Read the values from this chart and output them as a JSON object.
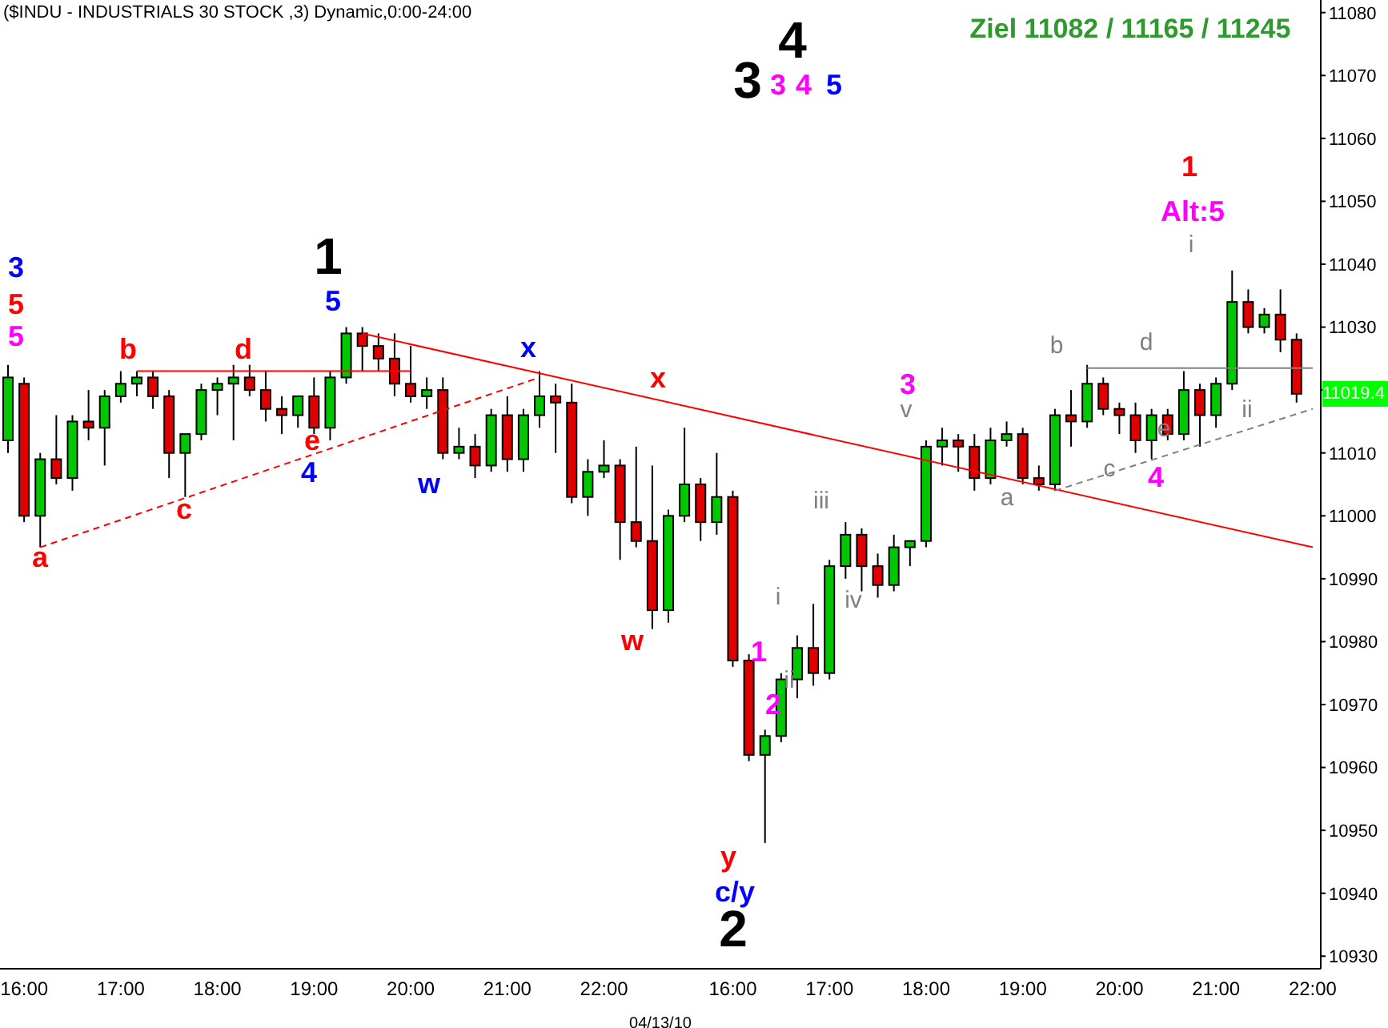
{
  "chart_data": {
    "type": "candlestick",
    "title": "($INDU - INDUSTRIALS 30 STOCK ,3) Dynamic,0:00-24:00",
    "xlabel": "04/13/10",
    "categories": [
      null,
      "16:00",
      null,
      null,
      null,
      null,
      null,
      "17:00",
      null,
      null,
      null,
      null,
      null,
      "18:00",
      null,
      null,
      null,
      null,
      null,
      "19:00",
      null,
      null,
      null,
      null,
      null,
      "20:00",
      null,
      null,
      null,
      null,
      null,
      "21:00",
      null,
      null,
      null,
      null,
      null,
      "22:00",
      null,
      null,
      null,
      null,
      null,
      null,
      null,
      "16:00",
      null,
      null,
      null,
      null,
      null,
      "17:00",
      null,
      null,
      null,
      null,
      null,
      "18:00",
      null,
      null,
      null,
      null,
      null,
      "19:00",
      null,
      null,
      null,
      null,
      null,
      "20:00",
      null,
      null,
      null,
      null,
      null,
      "21:00",
      null,
      null,
      null,
      null,
      null,
      "22:00"
    ],
    "ohlc": [
      [
        11012,
        11024,
        11010,
        11022
      ],
      [
        11021,
        11022,
        10999,
        11000
      ],
      [
        11000,
        11010,
        10995,
        11009
      ],
      [
        11009,
        11016,
        11005,
        11006
      ],
      [
        11006,
        11016,
        11004,
        11015
      ],
      [
        11015,
        11020,
        11012,
        11014
      ],
      [
        11014,
        11020,
        11008,
        11019
      ],
      [
        11019,
        11023,
        11018,
        11021
      ],
      [
        11021,
        11023,
        11019,
        11022
      ],
      [
        11022,
        11023,
        11017,
        11019
      ],
      [
        11019,
        11020,
        11006,
        11010
      ],
      [
        11010,
        11013,
        11003,
        11013
      ],
      [
        11013,
        11021,
        11012,
        11020
      ],
      [
        11020,
        11022,
        11016,
        11021
      ],
      [
        11021,
        11024,
        11012,
        11022
      ],
      [
        11022,
        11024,
        11019,
        11020
      ],
      [
        11020,
        11023,
        11015,
        11017
      ],
      [
        11017,
        11019,
        11013,
        11016
      ],
      [
        11016,
        11019,
        11014,
        11019
      ],
      [
        11019,
        11022,
        11013,
        11014
      ],
      [
        11014,
        11023,
        11012,
        11022
      ],
      [
        11022,
        11030,
        11021,
        11029
      ],
      [
        11029,
        11030,
        11023,
        11027
      ],
      [
        11027,
        11029,
        11023,
        11025
      ],
      [
        11025,
        11029,
        11019,
        11021
      ],
      [
        11021,
        11027,
        11018,
        11019
      ],
      [
        11019,
        11022,
        11017,
        11020
      ],
      [
        11020,
        11022,
        11009,
        11010
      ],
      [
        11010,
        11014,
        11009,
        11011
      ],
      [
        11011,
        11013,
        11006,
        11008
      ],
      [
        11008,
        11017,
        11007,
        11016
      ],
      [
        11016,
        11019,
        11007,
        11009
      ],
      [
        11009,
        11017,
        11007,
        11016
      ],
      [
        11016,
        11023,
        11014,
        11019
      ],
      [
        11019,
        11021,
        11010,
        11018
      ],
      [
        11018,
        11021,
        11002,
        11003
      ],
      [
        11003,
        11009,
        11000,
        11007
      ],
      [
        11007,
        11012,
        11006,
        11008
      ],
      [
        11008,
        11009,
        10993,
        10999
      ],
      [
        10999,
        11011,
        10995,
        10996
      ],
      [
        10996,
        11008,
        10982,
        10985
      ],
      [
        10985,
        11001,
        10983,
        11000
      ],
      [
        11000,
        11014,
        10999,
        11005
      ],
      [
        11005,
        11006,
        10996,
        10999
      ],
      [
        10999,
        11010,
        10997,
        11003
      ],
      [
        11003,
        11004,
        10976,
        10977
      ],
      [
        10977,
        10978,
        10961,
        10962
      ],
      [
        10962,
        10966,
        10948,
        10965
      ],
      [
        10965,
        10975,
        10964,
        10974
      ],
      [
        10974,
        10981,
        10971,
        10979
      ],
      [
        10979,
        10986,
        10973,
        10975
      ],
      [
        10975,
        10993,
        10974,
        10992
      ],
      [
        10992,
        10999,
        10990,
        10997
      ],
      [
        10997,
        10998,
        10988,
        10992
      ],
      [
        10992,
        10994,
        10987,
        10989
      ],
      [
        10989,
        10997,
        10988,
        10995
      ],
      [
        10995,
        10996,
        10992,
        10996
      ],
      [
        10996,
        11012,
        10995,
        11011
      ],
      [
        11011,
        11014,
        11008,
        11012
      ],
      [
        11012,
        11013,
        11007,
        11011
      ],
      [
        11011,
        11013,
        11004,
        11006
      ],
      [
        11006,
        11014,
        11005,
        11012
      ],
      [
        11012,
        11015,
        11011,
        11013
      ],
      [
        11013,
        11014,
        11005,
        11006
      ],
      [
        11006,
        11008,
        11004,
        11005
      ],
      [
        11005,
        11017,
        11004,
        11016
      ],
      [
        11016,
        11020,
        11011,
        11015
      ],
      [
        11015,
        11024,
        11014,
        11021
      ],
      [
        11021,
        11022,
        11016,
        11017
      ],
      [
        11017,
        11018,
        11013,
        11016
      ],
      [
        11016,
        11018,
        11010,
        11012
      ],
      [
        11012,
        11017,
        11009,
        11016
      ],
      [
        11016,
        11017,
        11012,
        11013
      ],
      [
        11013,
        11023,
        11012,
        11020
      ],
      [
        11020,
        11021,
        11011,
        11016
      ],
      [
        11016,
        11022,
        11014,
        11021
      ],
      [
        11021,
        11039,
        11020,
        11034
      ],
      [
        11034,
        11036,
        11029,
        11030
      ],
      [
        11030,
        11033,
        11029,
        11032
      ],
      [
        11032,
        11036,
        11026,
        11028
      ],
      [
        11028,
        11029,
        11018,
        11019.4
      ],
      null
    ],
    "colors": [
      "#00c800",
      "#e00000",
      "#00c800",
      "#e00000",
      "#00c800",
      "#e00000",
      "#00c800",
      "#00c800",
      "#00c800",
      "#e00000",
      "#e00000",
      "#00c800",
      "#00c800",
      "#00c800",
      "#00c800",
      "#e00000",
      "#e00000",
      "#e00000",
      "#00c800",
      "#e00000",
      "#00c800",
      "#00c800",
      "#e00000",
      "#e00000",
      "#e00000",
      "#e00000",
      "#00c800",
      "#e00000",
      "#00c800",
      "#e00000",
      "#00c800",
      "#e00000",
      "#00c800",
      "#00c800",
      "#e00000",
      "#e00000",
      "#00c800",
      "#00c800",
      "#e00000",
      "#e00000",
      "#e00000",
      "#00c800",
      "#00c800",
      "#e00000",
      "#00c800",
      "#e00000",
      "#e00000",
      "#00c800",
      "#00c800",
      "#00c800",
      "#e00000",
      "#00c800",
      "#00c800",
      "#e00000",
      "#e00000",
      "#00c800",
      "#00c800",
      "#00c800",
      "#00c800",
      "#e00000",
      "#e00000",
      "#00c800",
      "#00c800",
      "#e00000",
      "#e00000",
      "#00c800",
      "#e00000",
      "#00c800",
      "#e00000",
      "#e00000",
      "#e00000",
      "#00c800",
      "#e00000",
      "#00c800",
      "#e00000",
      "#00c800",
      "#00c800",
      "#e00000",
      "#00c800",
      "#e00000",
      "#e00000",
      null
    ],
    "series": [
      {
        "type": "line",
        "color": "#ff0000",
        "line_style": "dashed",
        "values": [
          null,
          null,
          10995,
          null,
          null,
          null,
          null,
          null,
          null,
          null,
          null,
          null,
          null,
          null,
          null,
          null,
          null,
          null,
          null,
          null,
          null,
          null,
          null,
          null,
          null,
          null,
          null,
          null,
          null,
          null,
          null,
          null,
          null,
          11022,
          null,
          null,
          null,
          null,
          null,
          null,
          null,
          null,
          null,
          null,
          null,
          null,
          null,
          null,
          null,
          null,
          null,
          null,
          null,
          null,
          null,
          null,
          null,
          null,
          null,
          null,
          null,
          null,
          null,
          null,
          null,
          null,
          null,
          null,
          null,
          null,
          null,
          null,
          null,
          null,
          null,
          null,
          null,
          null,
          null,
          null,
          null,
          null
        ]
      },
      {
        "type": "line",
        "color": "#ff0000",
        "line_style": "solid",
        "values": [
          null,
          null,
          null,
          null,
          null,
          null,
          null,
          null,
          null,
          null,
          null,
          null,
          null,
          null,
          null,
          null,
          null,
          null,
          null,
          null,
          null,
          null,
          11029,
          null,
          null,
          null,
          null,
          null,
          null,
          null,
          null,
          null,
          null,
          null,
          null,
          null,
          null,
          null,
          null,
          null,
          null,
          null,
          null,
          null,
          null,
          null,
          null,
          null,
          null,
          null,
          null,
          null,
          null,
          null,
          null,
          null,
          null,
          null,
          null,
          null,
          null,
          null,
          null,
          null,
          null,
          null,
          null,
          null,
          null,
          null,
          null,
          null,
          null,
          null,
          null,
          null,
          null,
          null,
          null,
          null,
          null,
          10995
        ]
      },
      {
        "type": "line",
        "color": "#ff0000",
        "line_style": "solid",
        "values": [
          null,
          null,
          null,
          null,
          null,
          null,
          null,
          null,
          11023,
          null,
          null,
          null,
          null,
          null,
          null,
          null,
          null,
          null,
          null,
          null,
          null,
          null,
          null,
          null,
          null,
          11023,
          null,
          null,
          null,
          null,
          null,
          null,
          null,
          null,
          null,
          null,
          null,
          null,
          null,
          null,
          null,
          null,
          null,
          null,
          null,
          null,
          null,
          null,
          null,
          null,
          null,
          null,
          null,
          null,
          null,
          null,
          null,
          null,
          null,
          null,
          null,
          null,
          null,
          null,
          null,
          null,
          null,
          null,
          null,
          null,
          null,
          null,
          null,
          null,
          null,
          null,
          null,
          null,
          null,
          null,
          null,
          null
        ]
      },
      {
        "type": "line",
        "color": "#808080",
        "line_style": "dashed",
        "values": [
          null,
          null,
          null,
          null,
          null,
          null,
          null,
          null,
          null,
          null,
          null,
          null,
          null,
          null,
          null,
          null,
          null,
          null,
          null,
          null,
          null,
          null,
          null,
          null,
          null,
          null,
          null,
          null,
          null,
          null,
          null,
          null,
          null,
          null,
          null,
          null,
          null,
          null,
          null,
          null,
          null,
          null,
          null,
          null,
          null,
          null,
          null,
          null,
          null,
          null,
          null,
          null,
          null,
          null,
          null,
          null,
          null,
          null,
          null,
          null,
          null,
          null,
          null,
          null,
          null,
          11004,
          null,
          null,
          null,
          null,
          null,
          null,
          null,
          null,
          null,
          null,
          null,
          null,
          null,
          null,
          null,
          11017
        ]
      },
      {
        "type": "line",
        "color": "#808080",
        "line_style": "solid",
        "values": [
          null,
          null,
          null,
          null,
          null,
          null,
          null,
          null,
          null,
          null,
          null,
          null,
          null,
          null,
          null,
          null,
          null,
          null,
          null,
          null,
          null,
          null,
          null,
          null,
          null,
          null,
          null,
          null,
          null,
          null,
          null,
          null,
          null,
          null,
          null,
          null,
          null,
          null,
          null,
          null,
          null,
          null,
          null,
          null,
          null,
          null,
          null,
          null,
          null,
          null,
          null,
          null,
          null,
          null,
          null,
          null,
          null,
          null,
          null,
          null,
          null,
          null,
          null,
          null,
          null,
          null,
          null,
          11023.5,
          null,
          null,
          null,
          null,
          null,
          null,
          null,
          null,
          null,
          null,
          null,
          null,
          null,
          11023.5
        ]
      }
    ],
    "ylim": [
      10928,
      11082
    ],
    "yticks": [
      10930,
      10940,
      10950,
      10960,
      10970,
      10980,
      10990,
      11000,
      11010,
      {
        "value": 11020,
        "label": null
      },
      11030,
      11040,
      11050,
      11060,
      11070,
      11080
    ],
    "annotations": [
      "Ziel 11082 / 11165 / 11245",
      "11019.4",
      "3",
      "5",
      "5",
      "a",
      "b",
      "c",
      "d",
      "e",
      "4",
      "1",
      "5",
      "w",
      "x",
      "w",
      "x",
      "y",
      "c/y",
      "2",
      "1",
      "2",
      "i",
      "ii",
      "iii",
      "iv",
      "3",
      "v",
      "a",
      "b",
      "c",
      "d",
      "e",
      "4",
      "i",
      "Alt:5",
      "1",
      "ii",
      "3",
      "4",
      "3",
      "4",
      "5"
    ]
  }
}
